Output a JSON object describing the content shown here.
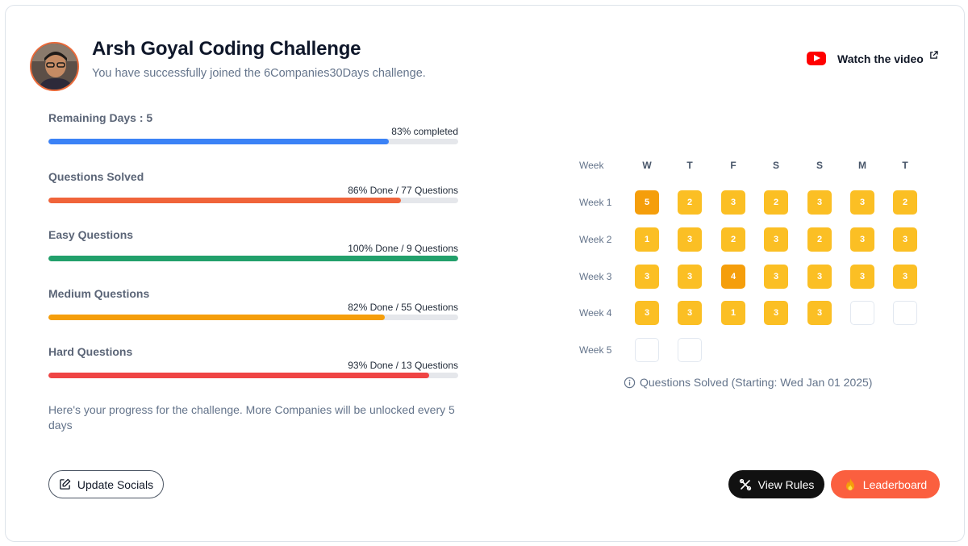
{
  "header": {
    "title": "Arsh Goyal Coding Challenge",
    "subtitle": "You have successfully joined the 6Companies30Days challenge.",
    "watch_label": "Watch the video"
  },
  "progress": [
    {
      "label": "Remaining Days : 5",
      "meta": "83% completed",
      "percent": 83,
      "color": "#3b82f6"
    },
    {
      "label": "Questions Solved",
      "meta": "86% Done / 77 Questions",
      "percent": 86,
      "color": "#f0643a"
    },
    {
      "label": "Easy Questions",
      "meta": "100% Done / 9 Questions",
      "percent": 100,
      "color": "#22a06b"
    },
    {
      "label": "Medium Questions",
      "meta": "82% Done / 55 Questions",
      "percent": 82,
      "color": "#f59e0b"
    },
    {
      "label": "Hard Questions",
      "meta": "93% Done / 13 Questions",
      "percent": 93,
      "color": "#ef4444"
    }
  ],
  "note": "Here's your progress for the challenge. More Companies will be unlocked every 5 days",
  "calendar": {
    "week_header": "Week",
    "days": [
      "W",
      "T",
      "F",
      "S",
      "S",
      "M",
      "T"
    ],
    "weeks": [
      {
        "label": "Week 1",
        "values": [
          "5",
          "2",
          "3",
          "2",
          "3",
          "3",
          "2"
        ]
      },
      {
        "label": "Week 2",
        "values": [
          "1",
          "3",
          "2",
          "3",
          "2",
          "3",
          "3"
        ]
      },
      {
        "label": "Week 3",
        "values": [
          "3",
          "3",
          "4",
          "3",
          "3",
          "3",
          "3"
        ]
      },
      {
        "label": "Week 4",
        "values": [
          "3",
          "3",
          "1",
          "3",
          "3",
          "",
          ""
        ]
      },
      {
        "label": "Week 5",
        "values": [
          "",
          ""
        ]
      }
    ],
    "caption": "Questions Solved (Starting: Wed Jan 01 2025)",
    "colors": {
      "normal": "#fbbf24",
      "high": "#f59e0b",
      "empty": "#ffffff"
    }
  },
  "buttons": {
    "update_socials": "Update Socials",
    "view_rules": "View Rules",
    "leaderboard": "Leaderboard"
  }
}
